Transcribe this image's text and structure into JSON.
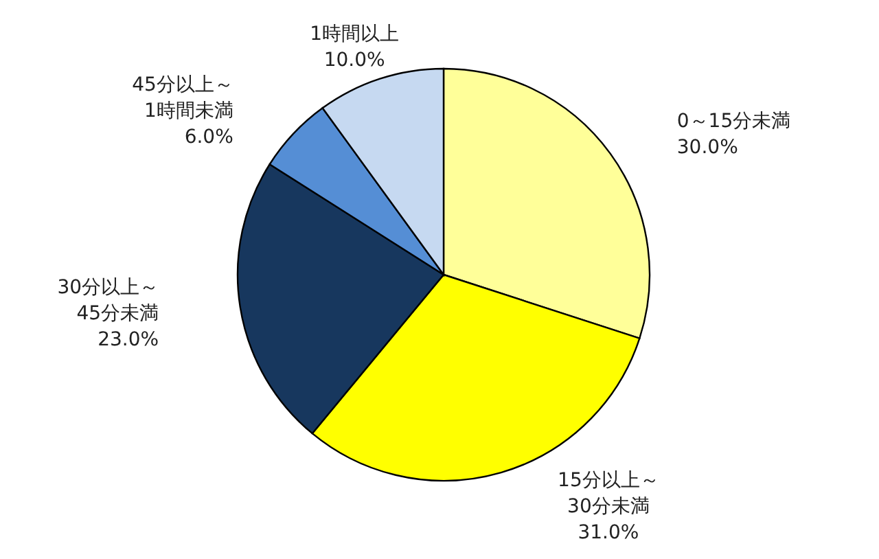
{
  "chart_data": {
    "type": "pie",
    "categories": [
      "0～15分未満",
      "15分以上～30分未満",
      "30分以上～45分未満",
      "45分以上～1時間未満",
      "1時間以上"
    ],
    "values": [
      30.0,
      31.0,
      23.0,
      6.0,
      10.0
    ],
    "colors": [
      "#ffff99",
      "#ffff00",
      "#17375e",
      "#558ed5",
      "#c6d9f1"
    ],
    "value_labels": [
      "30.0%",
      "31.0%",
      "23.0%",
      "6.0%",
      "10.0%"
    ]
  }
}
